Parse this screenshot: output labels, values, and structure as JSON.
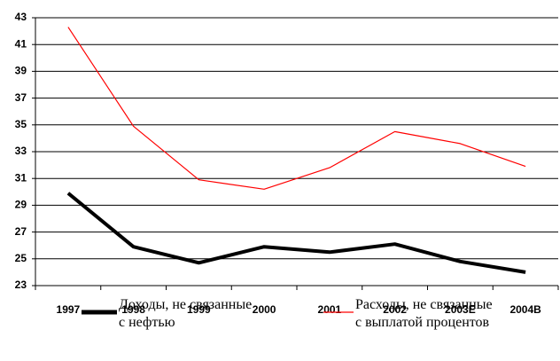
{
  "chart_data": {
    "type": "line",
    "categories": [
      "1997",
      "1998",
      "1999",
      "2000",
      "2001",
      "2002",
      "2003E",
      "2004B"
    ],
    "series": [
      {
        "name": "Доходы, не связанные\nс нефтью",
        "color": "#000000",
        "values": [
          29.9,
          25.9,
          24.7,
          25.9,
          25.5,
          26.1,
          24.8,
          24.0
        ]
      },
      {
        "name": "Расходы, не связанные\nс выплатой процентов",
        "color": "#ff0000",
        "values": [
          42.3,
          34.9,
          30.9,
          30.2,
          31.8,
          34.5,
          33.6,
          31.9
        ]
      }
    ],
    "ylim": [
      23,
      43
    ],
    "yticks": [
      23,
      25,
      27,
      29,
      31,
      33,
      35,
      37,
      39,
      41,
      43
    ],
    "grid": true
  }
}
